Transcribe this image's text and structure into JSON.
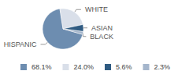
{
  "chart_data": {
    "type": "pie",
    "categories": [
      "HISPANIC",
      "WHITE",
      "ASIAN",
      "BLACK"
    ],
    "values": [
      68.1,
      24.0,
      5.6,
      2.3
    ],
    "value_labels": [
      "68.1%",
      "24.0%",
      "5.6%",
      "2.3%"
    ],
    "colors": [
      "#6d8db0",
      "#d9dfe9",
      "#2f5b82",
      "#a5b6cc"
    ],
    "legend": "bottom"
  }
}
